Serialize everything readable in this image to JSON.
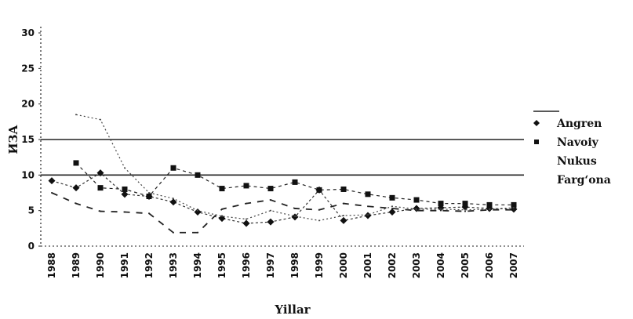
{
  "chart_data": {
    "type": "line",
    "xlabel": "Yillar",
    "ylabel": "ИЗА",
    "ylim": [
      0,
      30
    ],
    "yticks": [
      0,
      5,
      10,
      15,
      20,
      25,
      30
    ],
    "categories": [
      "1988",
      "1989",
      "1990",
      "1991",
      "1992",
      "1993",
      "1994",
      "1995",
      "1996",
      "1997",
      "1998",
      "1999",
      "2000",
      "2001",
      "2002",
      "2003",
      "2004",
      "2005",
      "2006",
      "2007"
    ],
    "reference_lines": [
      10,
      15
    ],
    "legend_position": "right",
    "series": [
      {
        "name": "Angren",
        "marker": "diamond",
        "values": [
          9.2,
          8.2,
          10.3,
          7.3,
          7.0,
          6.2,
          4.8,
          3.9,
          3.2,
          3.4,
          4.1,
          7.9,
          3.6,
          4.3,
          4.8,
          5.3,
          5.4,
          5.5,
          5.3,
          5.2
        ]
      },
      {
        "name": "Navoiy",
        "marker": "square",
        "values": [
          null,
          11.7,
          8.2,
          8.0,
          7.0,
          11.0,
          10.0,
          8.1,
          8.5,
          8.1,
          9.0,
          7.9,
          8.0,
          7.3,
          6.8,
          6.5,
          6.0,
          6.0,
          5.8,
          5.8
        ]
      },
      {
        "name": "Nukus",
        "marker": "none",
        "values": [
          7.5,
          6.0,
          4.9,
          4.8,
          4.6,
          1.9,
          1.9,
          5.2,
          6.0,
          6.5,
          5.3,
          5.1,
          6.0,
          5.6,
          5.3,
          5.0,
          5.0,
          4.9,
          5.1,
          5.1
        ]
      },
      {
        "name": "Farg‘ona",
        "marker": "none",
        "values": [
          null,
          18.5,
          17.8,
          11.0,
          7.5,
          6.7,
          5.0,
          4.2,
          3.8,
          5.0,
          4.2,
          3.6,
          4.3,
          4.4,
          5.6,
          5.2,
          5.2,
          5.1,
          5.2,
          5.4
        ]
      }
    ]
  }
}
